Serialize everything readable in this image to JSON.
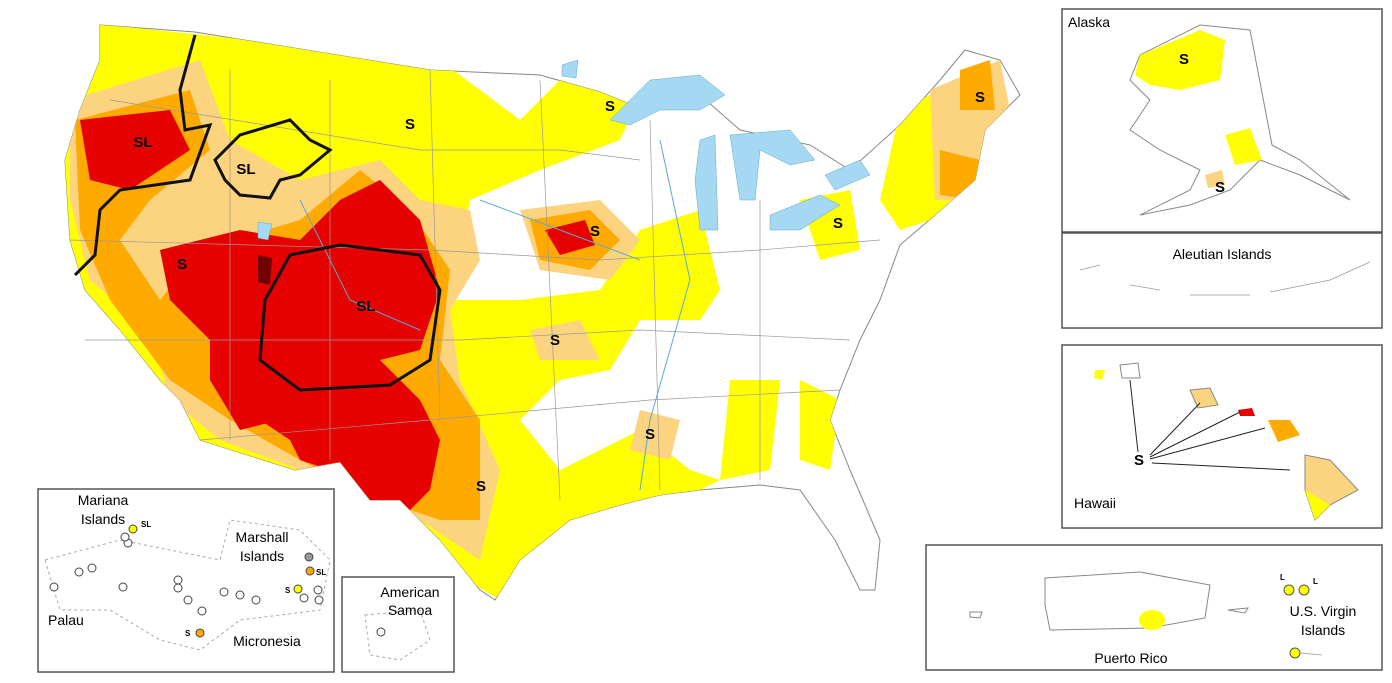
{
  "main_map": {
    "impact_labels": [
      "SL",
      "SL",
      "S",
      "S",
      "S",
      "S",
      "SL",
      "S",
      "S",
      "S",
      "S",
      "S"
    ]
  },
  "insets": {
    "alaska": {
      "title": "Alaska",
      "impact_labels": [
        "S",
        "S"
      ]
    },
    "aleutian": {
      "title": "Aleutian Islands"
    },
    "hawaii": {
      "title": "Hawaii",
      "impact_labels": [
        "S"
      ]
    },
    "puerto_rico": {
      "title": "Puerto Rico"
    },
    "virgin_islands": {
      "title_lines": [
        "U.S. Virgin",
        "Islands"
      ],
      "impact_labels": [
        "L",
        "L"
      ]
    },
    "pacific": {
      "mariana": {
        "title_lines": [
          "Mariana",
          "Islands"
        ],
        "impact_labels": [
          "SL"
        ]
      },
      "marshall": {
        "title_lines": [
          "Marshall",
          "Islands"
        ],
        "impact_labels": [
          "SL",
          "S"
        ]
      },
      "palau": {
        "title": "Palau"
      },
      "micronesia": {
        "title": "Micronesia",
        "impact_labels": [
          "S"
        ]
      }
    },
    "american_samoa": {
      "title_lines": [
        "American",
        "Samoa"
      ]
    }
  }
}
